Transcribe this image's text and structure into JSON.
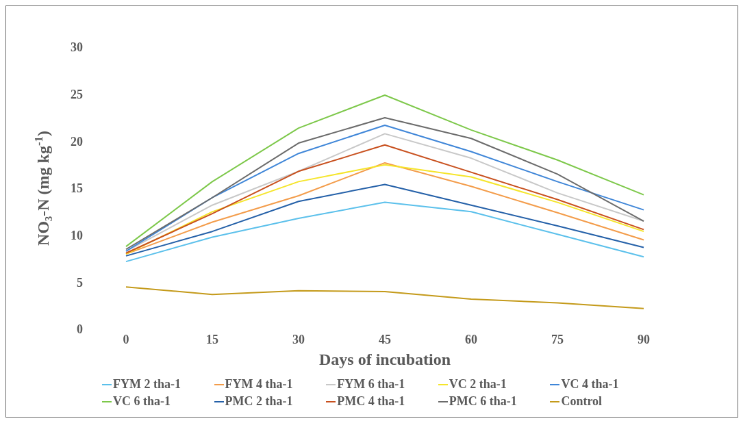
{
  "chart_data": {
    "type": "line",
    "xlabel": "Days of incubation",
    "ylabel": "NO₃-N (mg kg$^{-1}$)",
    "categories": [
      "0",
      "15",
      "30",
      "45",
      "60",
      "75",
      "90"
    ],
    "ylim": [
      0,
      30
    ],
    "yticks": [
      0,
      5,
      10,
      15,
      20,
      25,
      30
    ],
    "grid": false,
    "legend": "bottom",
    "marker": "none",
    "line_style": "solid",
    "series": [
      {
        "name": "FYM 2 tha-1",
        "color": "#5bc0eb",
        "values": [
          7.2,
          9.8,
          11.8,
          13.5,
          12.5,
          10.1,
          7.7
        ]
      },
      {
        "name": "FYM 4 tha-1",
        "color": "#f39c4a",
        "values": [
          8.0,
          11.4,
          14.2,
          17.7,
          15.2,
          12.4,
          9.5
        ]
      },
      {
        "name": "FYM 6 tha-1",
        "color": "#c8c8c8",
        "values": [
          8.3,
          13.2,
          16.8,
          20.8,
          18.2,
          14.5,
          11.5
        ]
      },
      {
        "name": "VC 2 tha-1",
        "color": "#f5e52a",
        "values": [
          8.0,
          12.5,
          15.7,
          17.5,
          16.2,
          13.5,
          10.4
        ]
      },
      {
        "name": "VC 4 tha-1",
        "color": "#3f86d8",
        "values": [
          8.3,
          14.0,
          18.7,
          21.7,
          18.9,
          15.7,
          12.7
        ]
      },
      {
        "name": "VC 6 tha-1",
        "color": "#7dc84a",
        "values": [
          8.8,
          15.7,
          21.4,
          24.9,
          21.2,
          18.0,
          14.3
        ]
      },
      {
        "name": "PMC 2 tha-1",
        "color": "#2460a8",
        "values": [
          7.8,
          10.4,
          13.6,
          15.4,
          13.2,
          11.0,
          8.7
        ]
      },
      {
        "name": "PMC 4 tha-1",
        "color": "#c8501e",
        "values": [
          8.1,
          12.3,
          16.8,
          19.6,
          16.7,
          13.8,
          10.6
        ]
      },
      {
        "name": "PMC 6 tha-1",
        "color": "#6b6b6b",
        "values": [
          8.5,
          14.0,
          19.8,
          22.5,
          20.3,
          16.5,
          11.5
        ]
      },
      {
        "name": "Control",
        "color": "#c49a1a",
        "values": [
          4.5,
          3.7,
          4.1,
          4.0,
          3.2,
          2.8,
          2.2
        ]
      }
    ]
  }
}
